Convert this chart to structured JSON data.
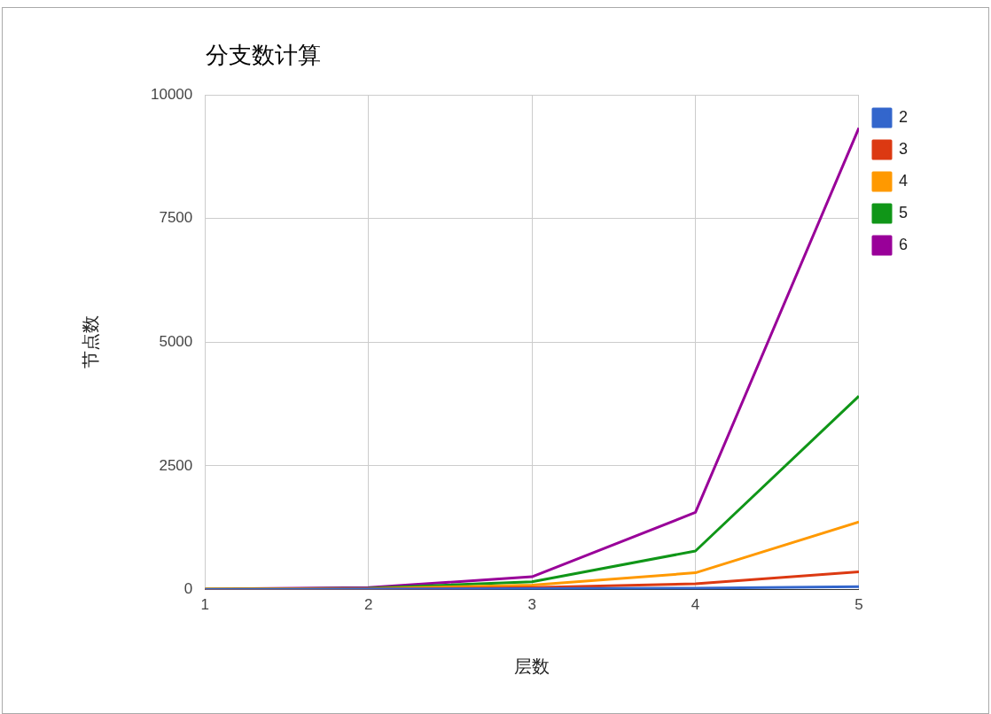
{
  "chart_data": {
    "type": "line",
    "title": "分支数计算",
    "xlabel": "层数",
    "ylabel": "节点数",
    "x": [
      1,
      2,
      3,
      4,
      5
    ],
    "series": [
      {
        "name": "2",
        "color": "#3366cc",
        "values": [
          0,
          10,
          20,
          30,
          60
        ]
      },
      {
        "name": "3",
        "color": "#dc3912",
        "values": [
          0,
          10,
          40,
          120,
          360
        ]
      },
      {
        "name": "4",
        "color": "#ff9900",
        "values": [
          10,
          20,
          90,
          340,
          1370
        ]
      },
      {
        "name": "5",
        "color": "#109618",
        "values": [
          10,
          30,
          160,
          780,
          3910
        ]
      },
      {
        "name": "6",
        "color": "#990099",
        "values": [
          10,
          40,
          260,
          1560,
          9330
        ]
      }
    ],
    "xlim": [
      1,
      5
    ],
    "xticks": [
      1,
      2,
      3,
      4,
      5
    ],
    "ylim": [
      0,
      10000
    ],
    "yticks": [
      0,
      2500,
      5000,
      7500,
      10000
    ],
    "grid": true,
    "legend": "top right",
    "marker": "none",
    "line_style": "solid"
  }
}
